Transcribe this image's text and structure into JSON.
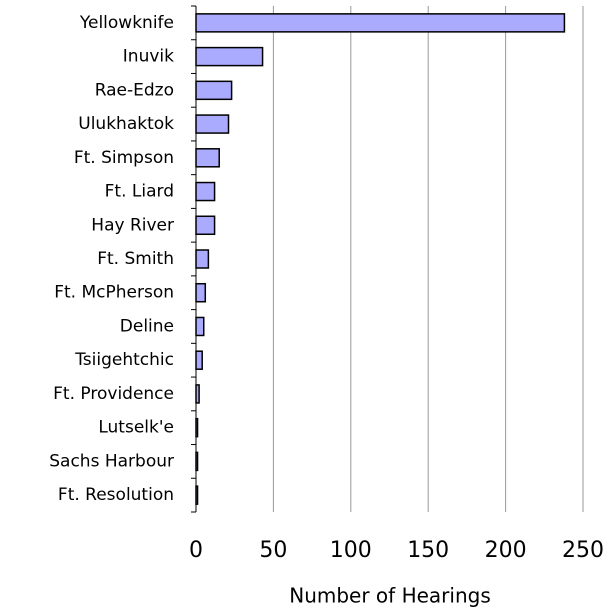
{
  "chart_data": {
    "type": "bar",
    "orientation": "horizontal",
    "x_label": "Number of Hearings",
    "categories": [
      "Yellowknife",
      "Inuvik",
      "Rae-Edzo",
      "Ulukhaktok",
      "Ft. Simpson",
      "Ft. Liard",
      "Hay River",
      "Ft. Smith",
      "Ft. McPherson",
      "Deline",
      "Tsiigehtchic",
      "Ft. Providence",
      "Lutselk'e",
      "Sachs Harbour",
      "Ft. Resolution"
    ],
    "values": [
      238,
      43,
      23,
      21,
      15,
      12,
      12,
      8,
      6,
      5,
      4,
      2,
      1,
      1,
      1
    ],
    "color": "#aaaaff",
    "xlim": [
      0,
      250
    ],
    "xticks": [
      0,
      50,
      100,
      150,
      200,
      250
    ],
    "grid": true
  }
}
